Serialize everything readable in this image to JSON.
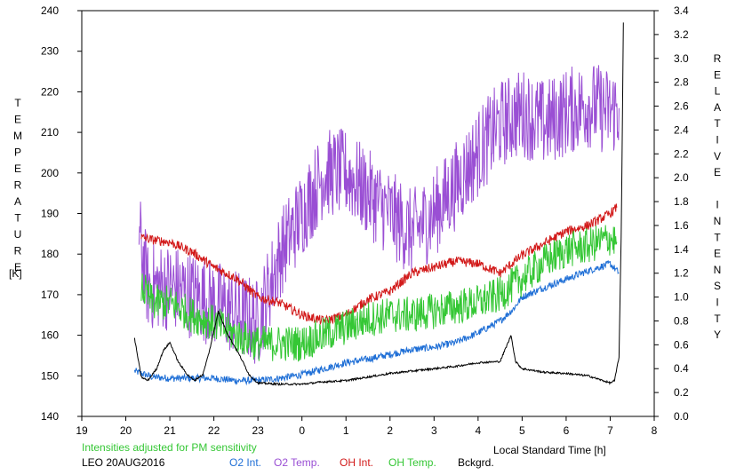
{
  "chart_data": {
    "type": "line",
    "footer_note": "Intensities adjusted for PM sensitivity",
    "station_date": "LEO 20AUG2016",
    "xlabel": "Local Standard Time [h]",
    "ylabel_left": "TEMPERATURE",
    "ylabel_left_unit": "[K]",
    "ylabel_right": "RELATIVE INTENSITY",
    "x_ticks": [
      "19",
      "20",
      "21",
      "22",
      "23",
      "0",
      "1",
      "2",
      "3",
      "4",
      "5",
      "6",
      "7",
      "8"
    ],
    "xlim": [
      19,
      32
    ],
    "ylim_left": [
      140,
      240
    ],
    "y_ticks_left": [
      "140",
      "150",
      "160",
      "170",
      "180",
      "190",
      "200",
      "210",
      "220",
      "230",
      "240"
    ],
    "ylim_right": [
      0.0,
      3.4
    ],
    "y_ticks_right": [
      "0.0",
      "0.2",
      "0.4",
      "0.6",
      "0.8",
      "1.0",
      "1.2",
      "1.4",
      "1.6",
      "1.8",
      "2.0",
      "2.2",
      "2.4",
      "2.6",
      "2.8",
      "3.0",
      "3.2",
      "3.4"
    ],
    "grid": false,
    "series": [
      {
        "name": "O2 Int.",
        "axis": "right",
        "color": "#1f6fd6",
        "noise": 0.03,
        "x": [
          20.2,
          20.6,
          21.0,
          21.5,
          22.0,
          22.5,
          23.0,
          23.5,
          24.0,
          24.5,
          25.0,
          25.5,
          26.0,
          26.5,
          27.0,
          27.5,
          28.0,
          28.5,
          28.8,
          29.0,
          29.5,
          30.0,
          30.5,
          31.0,
          31.2
        ],
        "y": [
          0.38,
          0.33,
          0.32,
          0.32,
          0.32,
          0.3,
          0.3,
          0.32,
          0.35,
          0.4,
          0.45,
          0.48,
          0.52,
          0.56,
          0.58,
          0.62,
          0.7,
          0.8,
          0.9,
          1.0,
          1.08,
          1.15,
          1.22,
          1.28,
          1.2
        ]
      },
      {
        "name": "O2 Temp.",
        "axis": "left",
        "color": "#9a4fd4",
        "noise": 11,
        "x": [
          20.3,
          20.5,
          21.0,
          22.0,
          23.0,
          23.5,
          24.0,
          24.5,
          25.0,
          25.5,
          26.0,
          26.5,
          27.0,
          27.5,
          28.0,
          28.5,
          29.0,
          29.5,
          30.0,
          30.5,
          31.0,
          31.2
        ],
        "y": [
          185,
          172,
          172,
          168,
          163,
          180,
          190,
          200,
          200,
          195,
          190,
          185,
          190,
          197,
          205,
          212,
          215,
          212,
          215,
          217,
          215,
          216
        ]
      },
      {
        "name": "OH Int.",
        "axis": "right",
        "color": "#d21a1a",
        "noise": 0.04,
        "x": [
          20.35,
          20.6,
          21.0,
          21.5,
          22.0,
          22.5,
          23.0,
          23.5,
          24.0,
          24.5,
          25.0,
          25.5,
          26.0,
          26.5,
          27.0,
          27.5,
          28.0,
          28.5,
          29.0,
          29.5,
          30.0,
          30.5,
          31.0,
          31.15
        ],
        "y": [
          1.5,
          1.48,
          1.46,
          1.38,
          1.25,
          1.16,
          1.0,
          0.95,
          0.85,
          0.8,
          0.85,
          0.98,
          1.05,
          1.2,
          1.25,
          1.3,
          1.28,
          1.2,
          1.35,
          1.45,
          1.55,
          1.6,
          1.7,
          1.75
        ]
      },
      {
        "name": "OH Temp.",
        "axis": "left",
        "color": "#35c735",
        "noise": 4.5,
        "x": [
          20.35,
          20.6,
          21.0,
          21.5,
          22.0,
          22.5,
          23.0,
          23.5,
          24.0,
          24.5,
          25.0,
          25.5,
          26.0,
          26.5,
          27.0,
          27.5,
          28.0,
          28.5,
          29.0,
          29.5,
          30.0,
          30.5,
          31.0,
          31.15
        ],
        "y": [
          172,
          168,
          168,
          165,
          163,
          160,
          158,
          158,
          158,
          160,
          162,
          164,
          165,
          165,
          166,
          167,
          168,
          170,
          174,
          178,
          181,
          182,
          184,
          183
        ]
      },
      {
        "name": "Bckgrd.",
        "axis": "right",
        "color": "#000000",
        "noise": 0.008,
        "x": [
          20.2,
          20.35,
          20.5,
          20.7,
          20.85,
          21.0,
          21.2,
          21.4,
          21.55,
          21.75,
          21.9,
          22.1,
          22.3,
          22.6,
          22.8,
          23.0,
          23.5,
          24.0,
          24.5,
          25.0,
          25.5,
          26.0,
          26.5,
          27.0,
          27.5,
          28.0,
          28.5,
          28.75,
          28.85,
          29.0,
          29.5,
          30.0,
          30.5,
          31.0,
          31.1,
          31.2,
          31.25,
          31.3
        ],
        "y": [
          0.65,
          0.33,
          0.3,
          0.4,
          0.55,
          0.62,
          0.45,
          0.35,
          0.3,
          0.35,
          0.55,
          0.88,
          0.7,
          0.5,
          0.35,
          0.28,
          0.27,
          0.27,
          0.29,
          0.3,
          0.33,
          0.36,
          0.38,
          0.4,
          0.42,
          0.45,
          0.46,
          0.68,
          0.46,
          0.4,
          0.37,
          0.36,
          0.34,
          0.28,
          0.3,
          0.5,
          1.5,
          3.3
        ]
      }
    ]
  }
}
